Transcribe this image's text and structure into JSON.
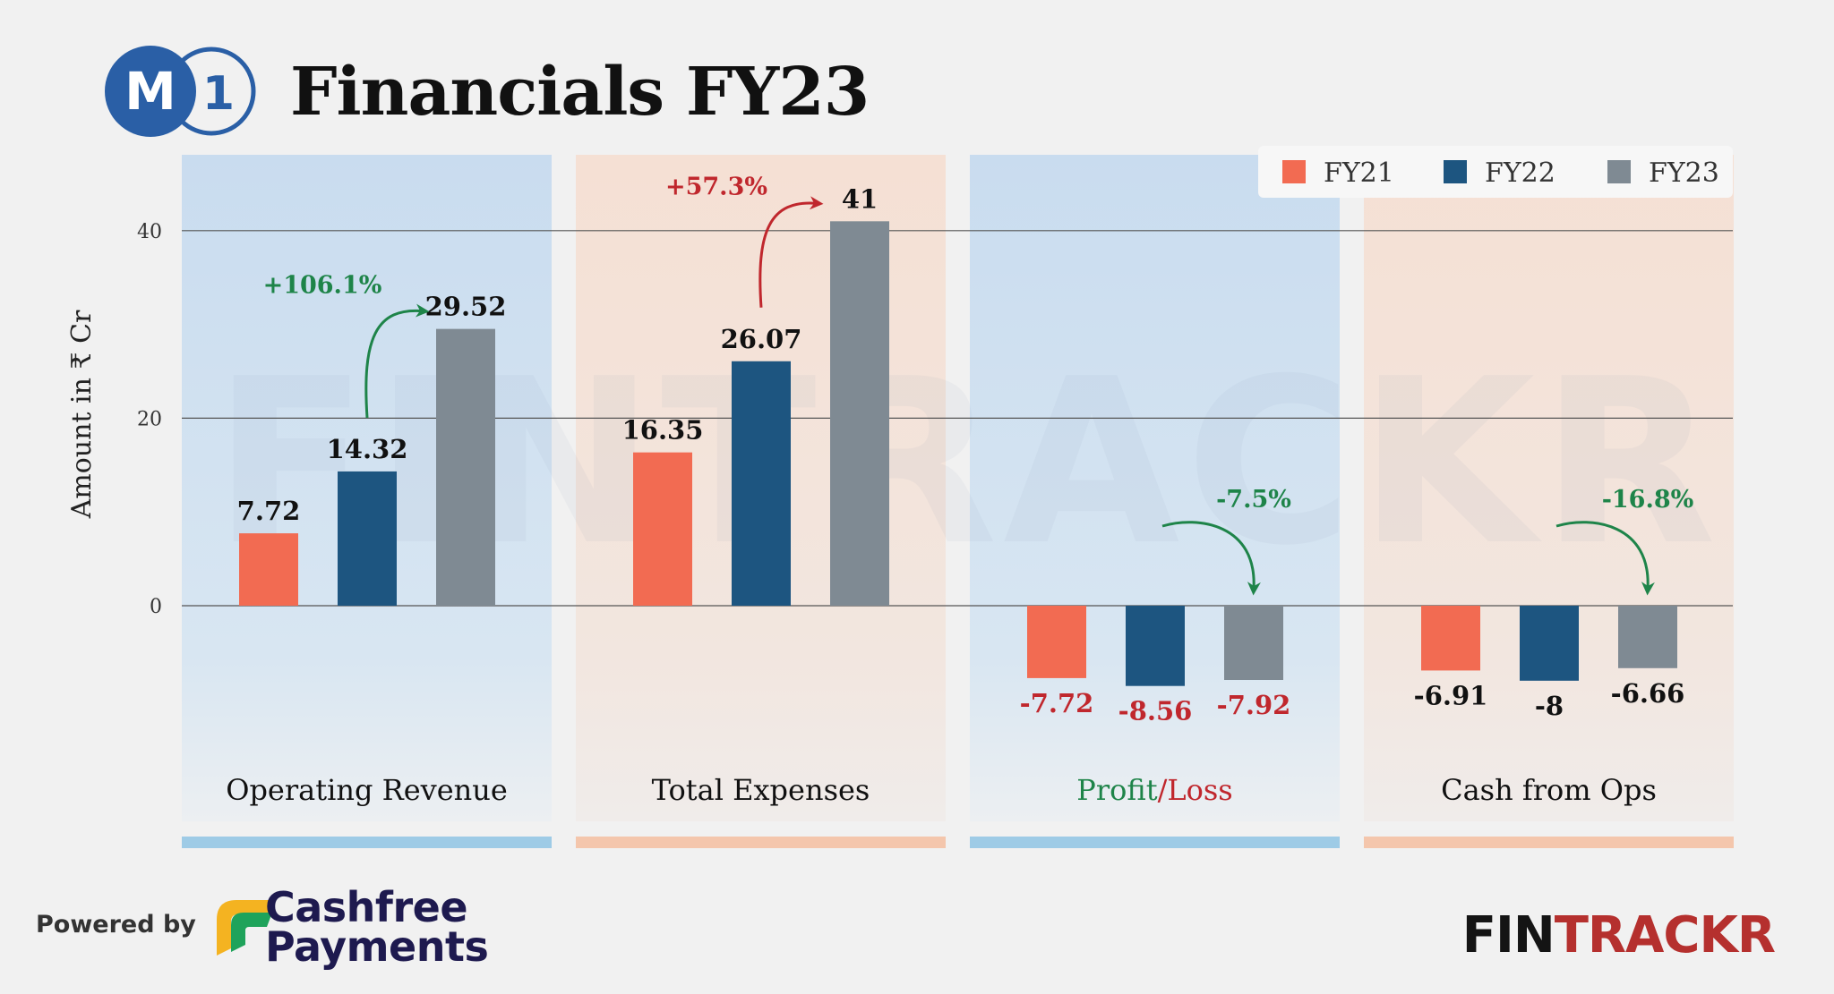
{
  "header": {
    "logo_letter": "M",
    "logo_number": "1",
    "title": "Financials FY23"
  },
  "footer": {
    "powered_by": "Powered by",
    "cashfree_line1": "Cashfree",
    "cashfree_line2": "Payments",
    "fintrackr_a": "FIN",
    "fintrackr_b": "TRACKR"
  },
  "watermark": "FINTRACKR",
  "colors": {
    "FY21": "#f26b52",
    "FY22": "#1d5580",
    "FY23": "#7f8a93",
    "positive": "#1e8449",
    "negative": "#c0272d",
    "panel_blue": "#cfe0f0",
    "panel_peach": "#f4e2d8",
    "strip_blue": "#9ecbe6",
    "strip_peach": "#f4c6ac"
  },
  "chart_data": {
    "type": "bar",
    "ylabel": "Amount in ₹ Cr",
    "y_ticks": [
      "0",
      "20",
      "40"
    ],
    "ylim": [
      -25,
      48
    ],
    "grid": true,
    "legend_position": "top-right",
    "series_names": [
      "FY21",
      "FY22",
      "FY23"
    ],
    "groups": [
      {
        "label": "Operating Revenue",
        "panel": "blue",
        "values": [
          7.72,
          14.32,
          29.52
        ],
        "value_labels": [
          "7.72",
          "14.32",
          "29.52"
        ],
        "label_color": "dark",
        "change": {
          "text": "+106.1%",
          "tone": "positive",
          "direction": "up"
        }
      },
      {
        "label": "Total Expenses",
        "panel": "peach",
        "values": [
          16.35,
          26.07,
          41
        ],
        "value_labels": [
          "16.35",
          "26.07",
          "41"
        ],
        "label_color": "dark",
        "change": {
          "text": "+57.3%",
          "tone": "negative",
          "direction": "up"
        }
      },
      {
        "label": "",
        "label_parts": [
          {
            "text": "Profit",
            "tone": "positive"
          },
          {
            "text": "/",
            "tone": "negative"
          },
          {
            "text": "Loss",
            "tone": "negative"
          }
        ],
        "panel": "blue",
        "values": [
          -7.72,
          -8.56,
          -7.92
        ],
        "value_labels": [
          "-7.72",
          "-8.56",
          "-7.92"
        ],
        "label_color": "negative",
        "change": {
          "text": "-7.5%",
          "tone": "positive",
          "direction": "down"
        }
      },
      {
        "label": "Cash from Ops",
        "panel": "peach",
        "values": [
          -6.91,
          -8,
          -6.66
        ],
        "value_labels": [
          "-6.91",
          "-8",
          "-6.66"
        ],
        "label_color": "dark",
        "change": {
          "text": "-16.8%",
          "tone": "positive",
          "direction": "down"
        }
      }
    ]
  }
}
